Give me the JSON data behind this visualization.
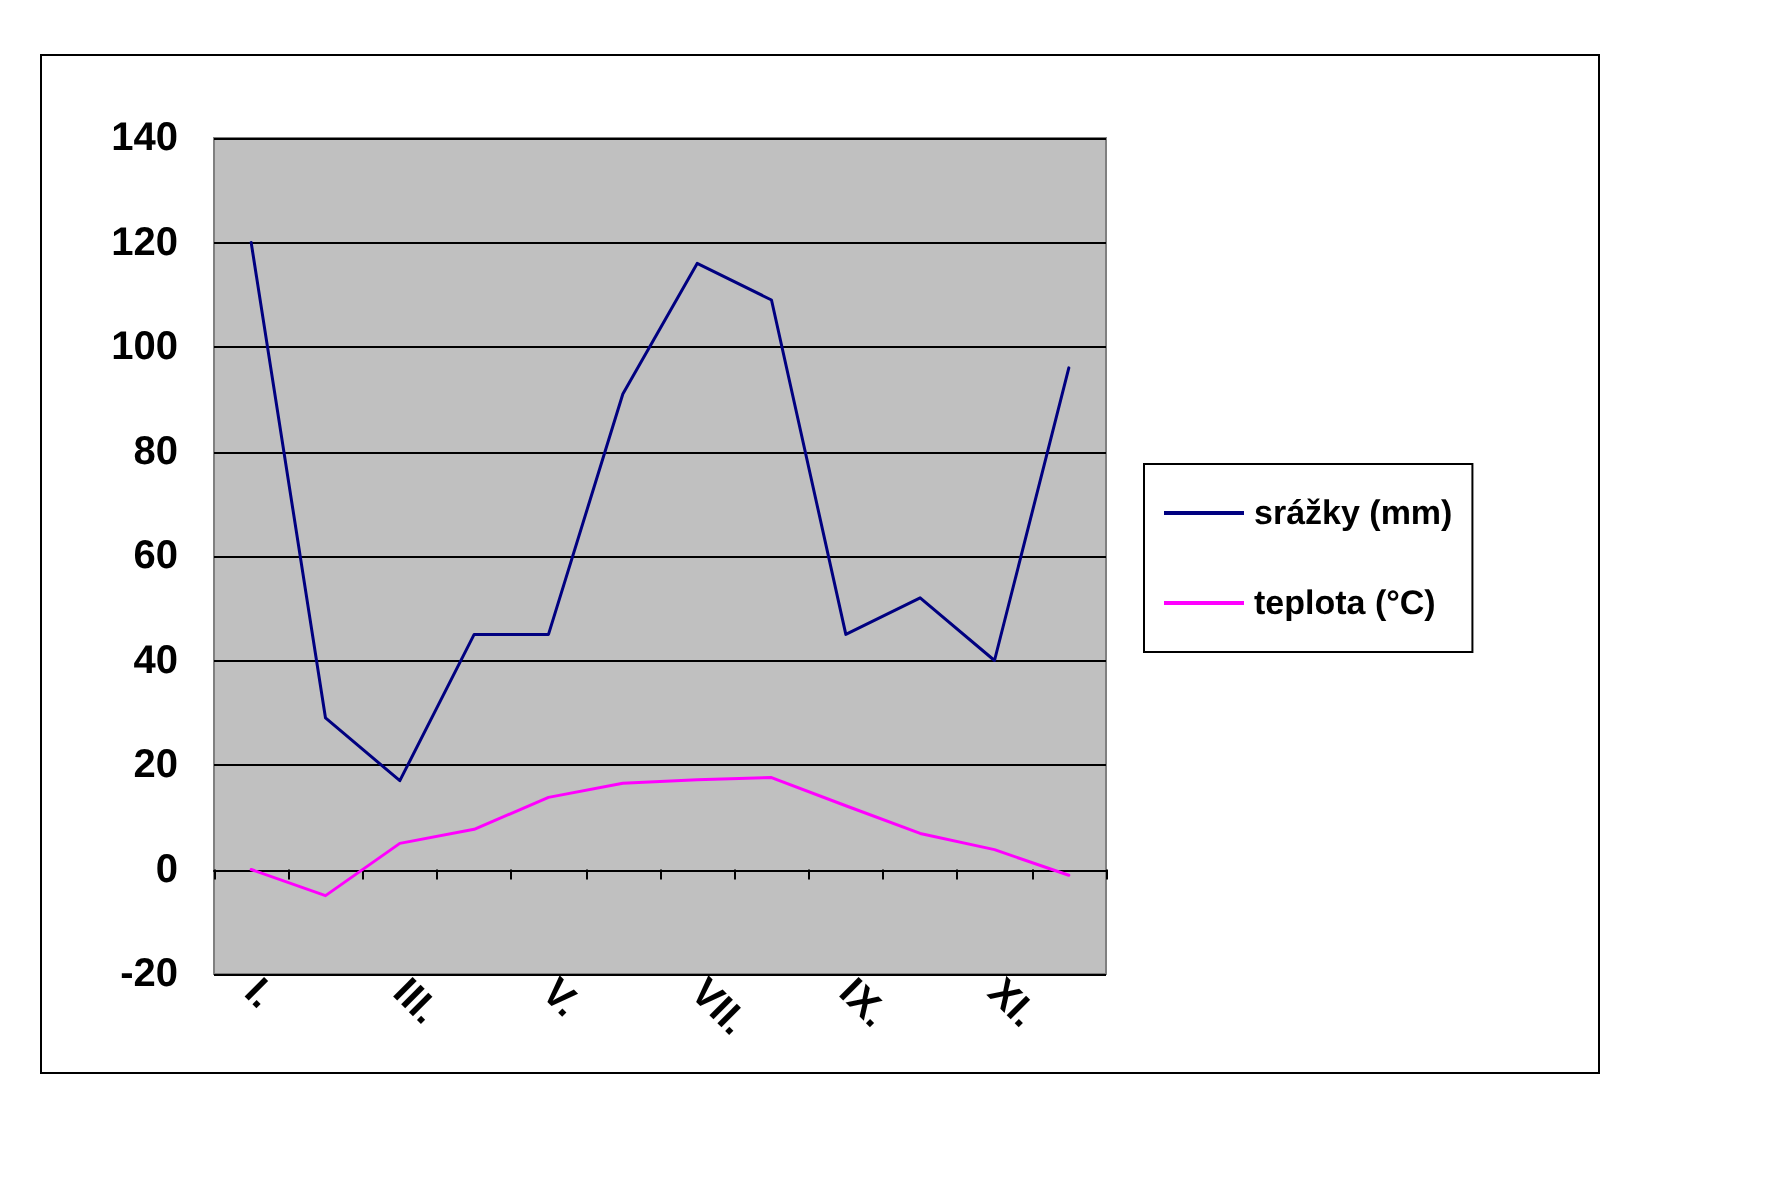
{
  "chart_data": {
    "type": "line",
    "categories": [
      "I.",
      null,
      "III.",
      null,
      "V.",
      null,
      "VII.",
      null,
      "IX.",
      null,
      "XI.",
      null
    ],
    "series": [
      {
        "name": "srážky (mm)",
        "color": "#000080",
        "values": [
          120,
          29,
          17,
          45,
          45,
          91,
          116,
          109,
          45,
          52,
          40,
          96
        ]
      },
      {
        "name": "teplota (°C)",
        "color": "#ff00ff",
        "values": [
          0,
          -5,
          5,
          7.7,
          13.8,
          16.5,
          17.2,
          17.6,
          12.2,
          6.9,
          3.8,
          -1.1
        ]
      }
    ],
    "ylim": [
      -20,
      140
    ],
    "yticks": [
      -20,
      0,
      20,
      40,
      60,
      80,
      100,
      120,
      140
    ],
    "grid": "y",
    "legend": "right",
    "marker": "none",
    "line_style": "solid"
  }
}
